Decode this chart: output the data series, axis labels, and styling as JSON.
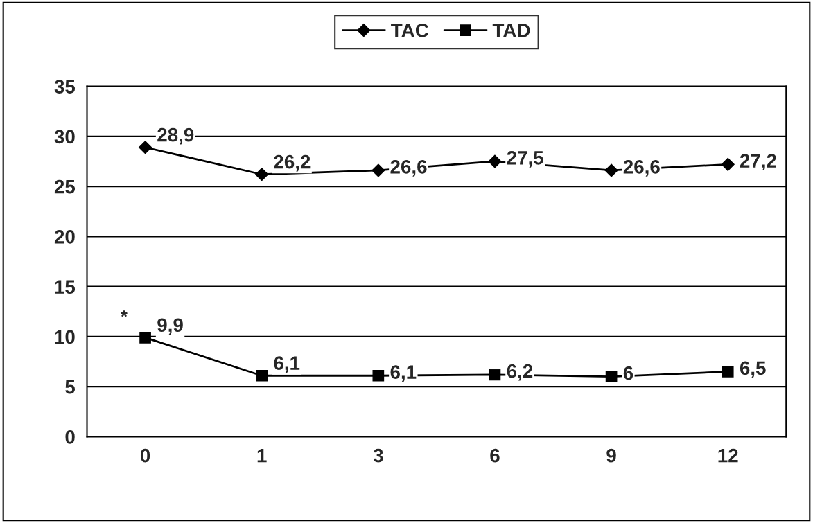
{
  "chart_data": {
    "type": "line",
    "categories": [
      "0",
      "1",
      "3",
      "6",
      "9",
      "12"
    ],
    "series": [
      {
        "name": "TAC",
        "color": "#000000",
        "marker": "diamond",
        "values": [
          28.9,
          26.2,
          26.6,
          27.5,
          26.6,
          27.2
        ],
        "value_labels": [
          "28,9",
          "26,2",
          "26,6",
          "27,5",
          "26,6",
          "27,2"
        ]
      },
      {
        "name": "TAD",
        "color": "#000000",
        "marker": "square",
        "values": [
          9.9,
          6.1,
          6.1,
          6.2,
          6,
          6.5
        ],
        "value_labels": [
          "9,9",
          "6,1",
          "6,1",
          "6,2",
          "6",
          "6,5"
        ]
      }
    ],
    "ylim": [
      0,
      35
    ],
    "yticks": [
      0,
      5,
      10,
      15,
      20,
      25,
      30,
      35
    ],
    "grid": "y",
    "legend": "top",
    "line_style": "solid",
    "annotations": [
      {
        "text": "*",
        "x": "0",
        "y": 9.9
      }
    ]
  }
}
